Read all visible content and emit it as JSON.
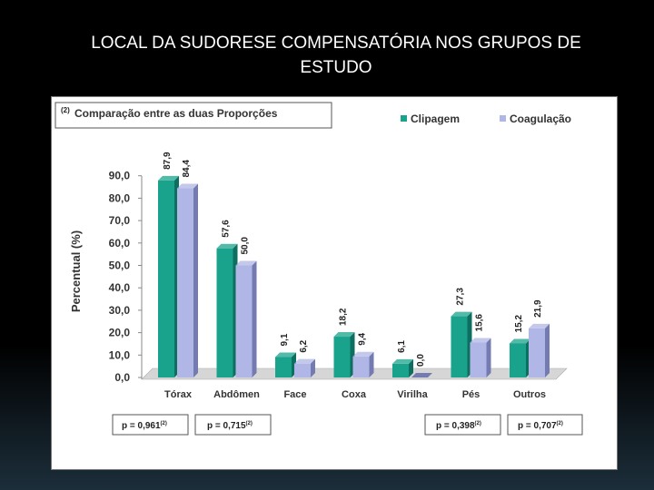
{
  "slide": {
    "title_line1": "LOCAL DA SUDORESE COMPENSATÓRIA NOS GRUPOS DE",
    "title_line2": "ESTUDO"
  },
  "chart_data": {
    "type": "bar",
    "note_superscript": "(2)",
    "note": "Comparação entre as duas Proporções",
    "ylabel": "Percentual (%)",
    "xlabel": "",
    "ylim": [
      0,
      90
    ],
    "yticks": [
      "0,0",
      "10,0",
      "20,0",
      "30,0",
      "40,0",
      "50,0",
      "60,0",
      "70,0",
      "80,0",
      "90,0"
    ],
    "categories": [
      "Tórax",
      "Abdômen",
      "Face",
      "Coxa",
      "Virilha",
      "Pés",
      "Outros"
    ],
    "series": [
      {
        "name": "Clipagem",
        "color": "#1aa38c",
        "dark": "#0e6e5f",
        "values": [
          87.9,
          57.6,
          9.1,
          18.2,
          6.1,
          27.3,
          15.2
        ],
        "labels": [
          "87,9",
          "57,6",
          "9,1",
          "18,2",
          "6,1",
          "27,3",
          "15,2"
        ]
      },
      {
        "name": "Coagulação",
        "color": "#b0b7e6",
        "dark": "#737bb0",
        "values": [
          84.4,
          50.0,
          6.2,
          9.4,
          0.0,
          15.6,
          21.9
        ],
        "labels": [
          "84,4",
          "50,0",
          "6,2",
          "9,4",
          "0,0",
          "15,6",
          "21,9"
        ]
      }
    ],
    "legend_position": "top-right",
    "p_values": [
      {
        "prefix": "p = 0,961",
        "sup": "(2)"
      },
      {
        "prefix": "p = 0,715",
        "sup": "(2)"
      },
      {
        "prefix": "p = 0,398",
        "sup": "(2)"
      },
      {
        "prefix": "p = 0,707",
        "sup": "(2)"
      }
    ]
  }
}
